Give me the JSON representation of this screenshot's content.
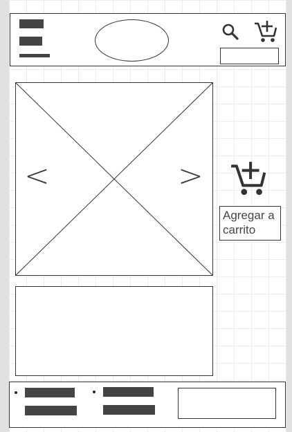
{
  "product": {
    "prev_arrow": "<",
    "next_arrow": ">",
    "add_to_cart_label": "Agregar a carrito"
  },
  "icons": {
    "menu": "menu-icon",
    "search": "search-icon",
    "cart": "cart-plus-icon",
    "add_to_cart": "cart-plus-icon",
    "image_placeholder": "image-placeholder-icon"
  },
  "colors": {
    "background": "#e0e0e0",
    "frame": "#ffffff",
    "grid": "#ececec",
    "stroke": "#333333",
    "placeholder_bar": "#444444"
  }
}
